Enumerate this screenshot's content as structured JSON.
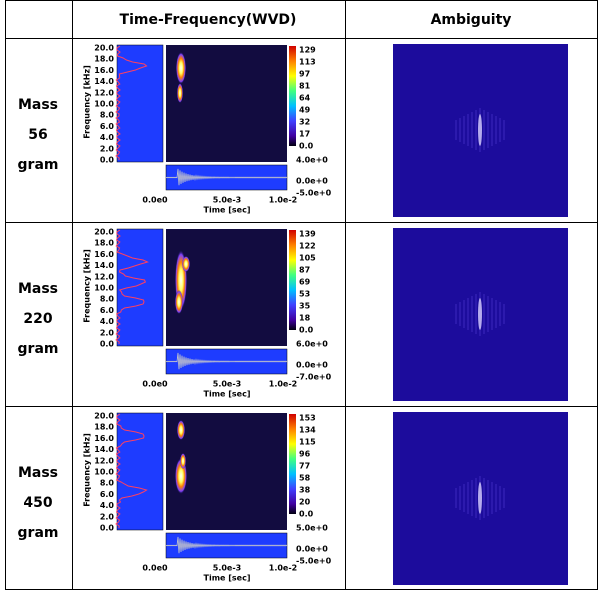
{
  "header": [
    "Time-Frequency(WVD)",
    "Ambiguity"
  ],
  "wvd_axes": {
    "yticks": [
      "20.0",
      "18.0",
      "16.0",
      "14.0",
      "12.0",
      "10.0",
      "8.0",
      "6.0",
      "4.0",
      "2.0",
      "0.0"
    ],
    "ylabel": "Frequency [kHz]",
    "xticks": [
      "0.0e0",
      "5.0e-3",
      "1.0e-2"
    ],
    "xlabel": "Time [sec]"
  },
  "rows": [
    {
      "label": [
        "Mass",
        "56",
        "gram"
      ],
      "colorbar": [
        "129",
        "113",
        "97",
        "81",
        "64",
        "49",
        "32",
        "17",
        "0.0"
      ],
      "signal_ticks": [
        "4.0e+0",
        "0.0e+0",
        "-5.0e+0"
      ]
    },
    {
      "label": [
        "Mass",
        "220",
        "gram"
      ],
      "colorbar": [
        "139",
        "122",
        "105",
        "87",
        "69",
        "53",
        "35",
        "18",
        "0.0"
      ],
      "signal_ticks": [
        "6.0e+0",
        "0.0e+0",
        "-7.0e+0"
      ]
    },
    {
      "label": [
        "Mass",
        "450",
        "gram"
      ],
      "colorbar": [
        "153",
        "134",
        "115",
        "96",
        "77",
        "58",
        "38",
        "20",
        "0.0"
      ],
      "signal_ticks": [
        "5.0e+0",
        "0.0e+0",
        "-5.0e+0"
      ]
    }
  ]
}
